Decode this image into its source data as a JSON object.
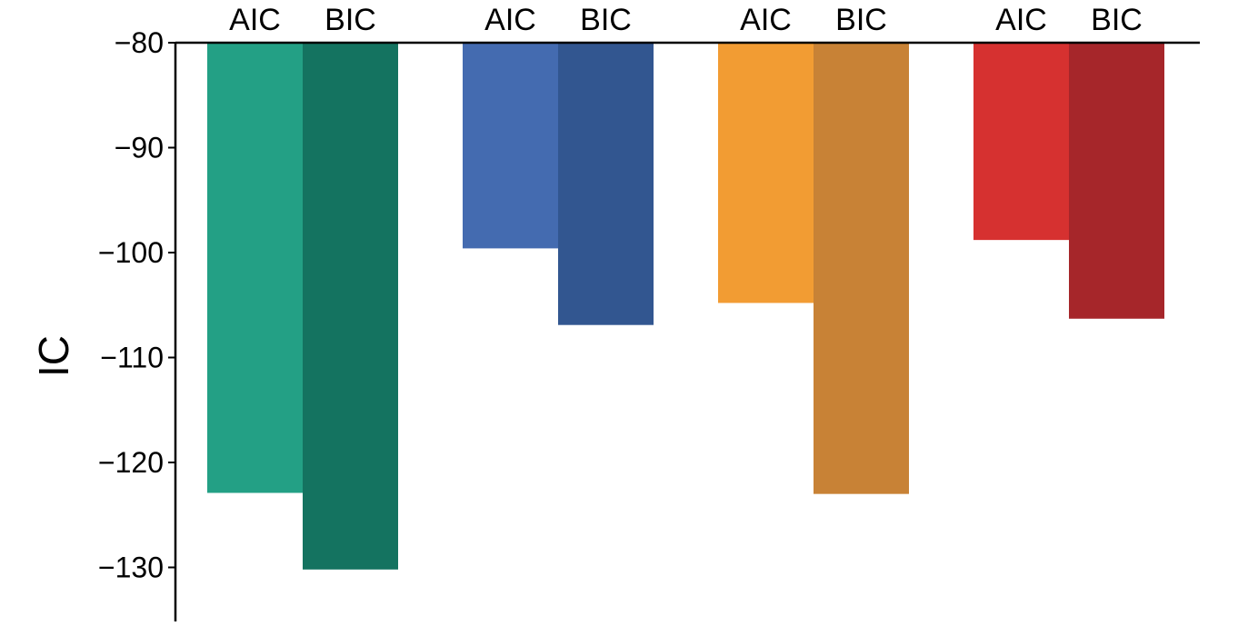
{
  "chart_data": {
    "type": "bar",
    "ylabel": "IC",
    "ylim": [
      -135,
      -80
    ],
    "yticks": [
      -80,
      -90,
      -100,
      -110,
      -120,
      -130
    ],
    "ytick_labels": [
      "−80",
      "−90",
      "−100",
      "−110",
      "−120",
      "−130"
    ],
    "bars": [
      {
        "label": "AIC",
        "value": -122.9,
        "color": "#23a085"
      },
      {
        "label": "BIC",
        "value": -130.2,
        "color": "#147360"
      },
      {
        "label": "AIC",
        "value": -99.6,
        "color": "#446bb0"
      },
      {
        "label": "BIC",
        "value": -106.9,
        "color": "#325690"
      },
      {
        "label": "AIC",
        "value": -104.8,
        "color": "#f29c33"
      },
      {
        "label": "BIC",
        "value": -123.0,
        "color": "#c88236"
      },
      {
        "label": "AIC",
        "value": -98.8,
        "color": "#d63130"
      },
      {
        "label": "BIC",
        "value": -106.3,
        "color": "#a6262a"
      }
    ],
    "grid": false,
    "legend": "none"
  }
}
